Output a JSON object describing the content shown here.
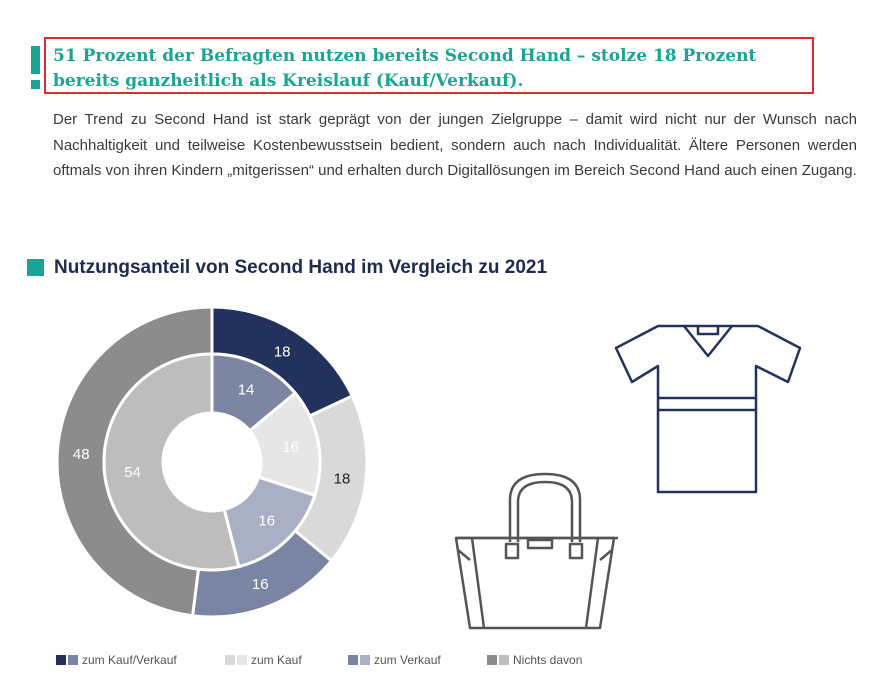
{
  "headline": "51 Prozent der Befragten nutzen bereits Second Hand – stolze 18 Prozent bereits ganzheitlich als Kreislauf (Kauf/Verkauf).",
  "intro": "Der Trend zu Second Hand ist stark geprägt von der jungen Zielgruppe – damit wird nicht nur der Wunsch nach Nachhaltigkeit und teilweise Kostenbewusstsein bedient, sondern auch nach Individualität. Ältere Personen werden oftmals von ihren Kindern „mitgerissen“ und erhalten durch Digitallösungen im Bereich Second Hand auch einen Zugang.",
  "chart_title": "Nutzungsanteil von Second Hand im Vergleich zu 2021",
  "chart_data": {
    "type": "donut",
    "title": "Nutzungsanteil von Second Hand im Vergleich zu 2021",
    "categories": [
      "zum Kauf/Verkauf",
      "zum Kauf",
      "zum Verkauf",
      "Nichts davon"
    ],
    "series": [
      {
        "name": "outer ring",
        "values": [
          18,
          18,
          16,
          48
        ],
        "colors": [
          "#22325c",
          "#d9d9d9",
          "#7a85a3",
          "#8c8c8c"
        ],
        "label_colors": [
          "#ffffff",
          "#222222",
          "#ffffff",
          "#ffffff"
        ]
      },
      {
        "name": "inner ring",
        "values": [
          14,
          16,
          16,
          54
        ],
        "colors": [
          "#7c86a2",
          "#e6e6e6",
          "#a9b0c4",
          "#bdbdbd"
        ],
        "label_colors": [
          "#ffffff",
          "#ffffff",
          "#ffffff",
          "#ffffff"
        ]
      }
    ],
    "start_angle": "12 o'clock, clockwise"
  },
  "legend": [
    {
      "label": "zum Kauf/Verkauf",
      "colors": [
        "#22325c",
        "#7c86a2"
      ]
    },
    {
      "label": "zum Kauf",
      "colors": [
        "#d9d9d9",
        "#e6e6e6"
      ]
    },
    {
      "label": "zum Verkauf",
      "colors": [
        "#7a85a3",
        "#a9b0c4"
      ]
    },
    {
      "label": "Nichts davon",
      "colors": [
        "#8c8c8c",
        "#bdbdbd"
      ]
    }
  ],
  "icons": {
    "shirt": "t-shirt-icon",
    "bag": "handbag-icon",
    "line_color_shirt": "#22325c",
    "line_color_bag": "#555555"
  }
}
